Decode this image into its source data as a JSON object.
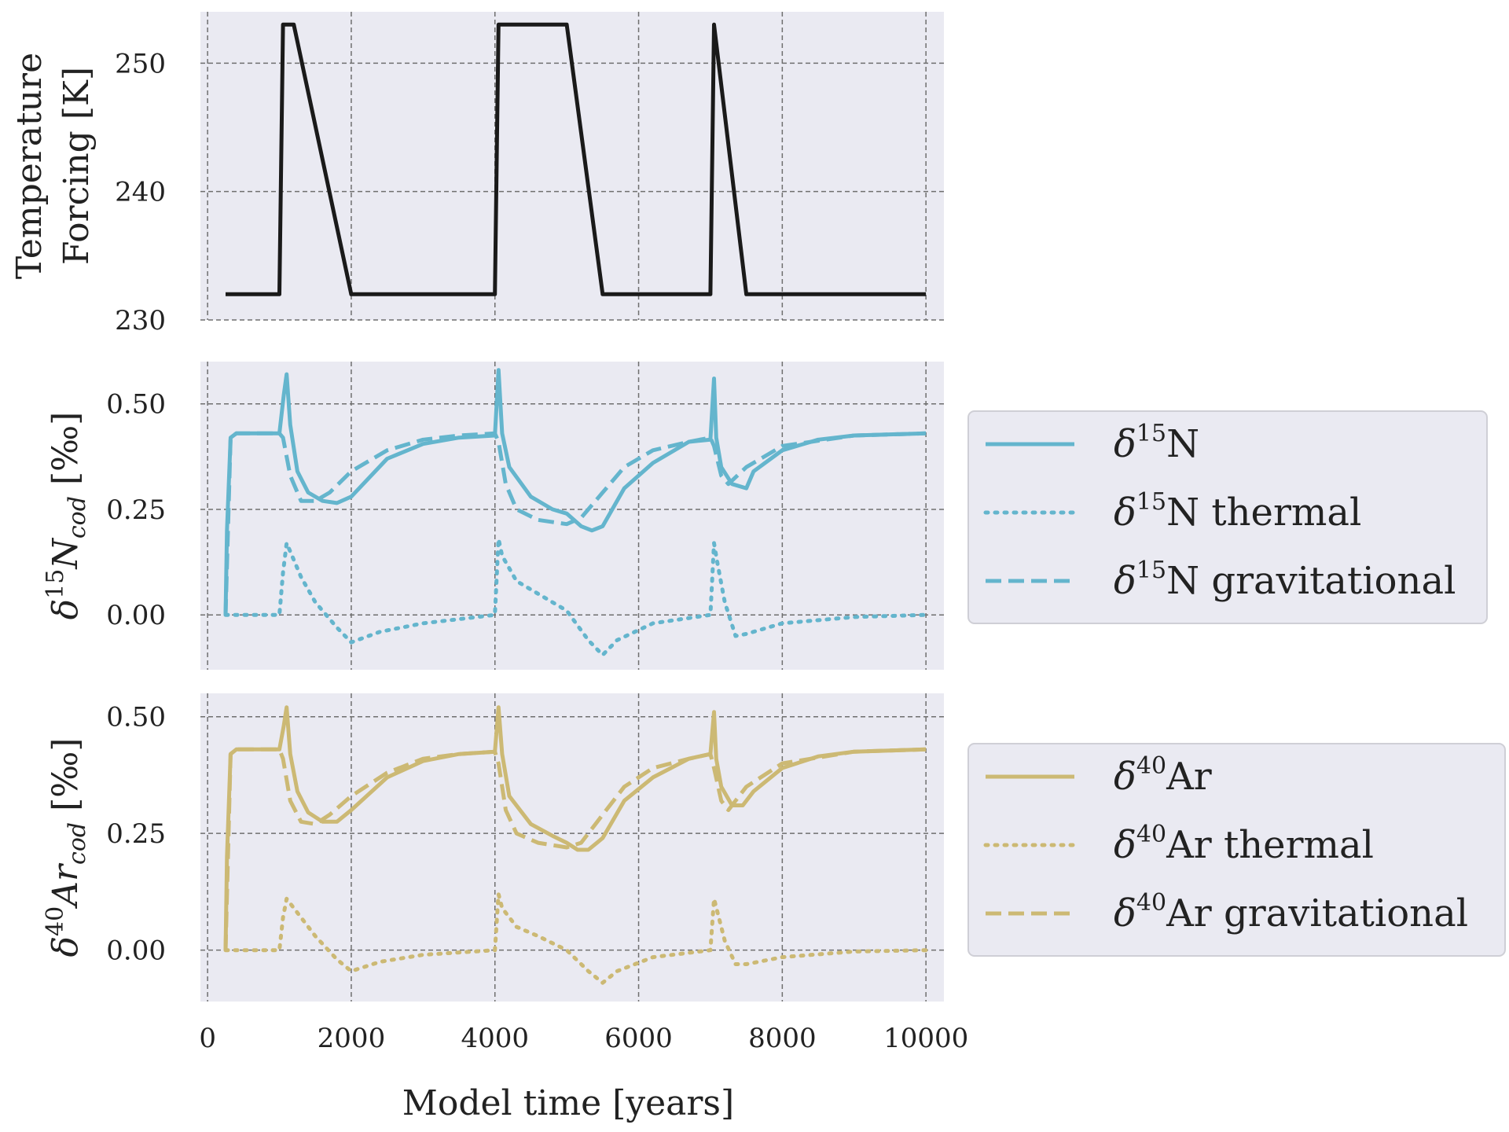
{
  "chart_data": [
    {
      "type": "line",
      "panel": "top",
      "ylabel_lines": [
        "Temperature",
        "Forcing [K]"
      ],
      "ylim": [
        230,
        254
      ],
      "xlim": [
        -100,
        10250
      ],
      "yticks": [
        230,
        240,
        250
      ],
      "ytick_labels": [
        "230",
        "240",
        "250"
      ],
      "xticks": [
        0,
        2000,
        4000,
        6000,
        8000,
        10000
      ],
      "grid": true,
      "series": [
        {
          "color": "#1a1a1a",
          "style": "solid",
          "x": [
            250,
            1000,
            1050,
            1200,
            2000,
            4000,
            4050,
            5000,
            5500,
            7000,
            7050,
            7500,
            10000
          ],
          "y": [
            232,
            232,
            253,
            253,
            232,
            232,
            253,
            253,
            232,
            232,
            253,
            232,
            232
          ]
        }
      ]
    },
    {
      "type": "line",
      "panel": "middle",
      "ylabel": {
        "delta": "δ",
        "sup": "15",
        "main": "N",
        "sub": "cod",
        "unit": " [‰]"
      },
      "ylim": [
        -0.13,
        0.6
      ],
      "yticks": [
        0.0,
        0.25,
        0.5
      ],
      "ytick_labels": [
        "0.00",
        "0.25",
        "0.50"
      ],
      "xlim": [
        -100,
        10250
      ],
      "xticks": [
        0,
        2000,
        4000,
        6000,
        8000,
        10000
      ],
      "grid": true,
      "legend": "right",
      "series": [
        {
          "legend": {
            "delta": "δ",
            "sup": "15",
            "text": "N"
          },
          "color": "#64b5cd",
          "style": "solid",
          "x": [
            250,
            270,
            320,
            400,
            1000,
            1060,
            1100,
            1150,
            1250,
            1400,
            1600,
            1800,
            2000,
            2500,
            3000,
            3500,
            4000,
            4050,
            4100,
            4200,
            4500,
            4800,
            5000,
            5200,
            5350,
            5500,
            5800,
            6200,
            6700,
            7000,
            7050,
            7080,
            7150,
            7300,
            7500,
            7600,
            8000,
            8500,
            9000,
            10000
          ],
          "y": [
            0.0,
            0.2,
            0.42,
            0.43,
            0.43,
            0.52,
            0.57,
            0.45,
            0.34,
            0.29,
            0.27,
            0.265,
            0.28,
            0.37,
            0.405,
            0.42,
            0.425,
            0.58,
            0.43,
            0.35,
            0.28,
            0.25,
            0.24,
            0.21,
            0.2,
            0.21,
            0.3,
            0.36,
            0.41,
            0.415,
            0.56,
            0.42,
            0.35,
            0.31,
            0.3,
            0.34,
            0.39,
            0.415,
            0.425,
            0.43
          ]
        },
        {
          "legend": {
            "delta": "δ",
            "sup": "15",
            "text": "N thermal"
          },
          "color": "#64b5cd",
          "style": "dotted",
          "x": [
            250,
            1000,
            1050,
            1100,
            1150,
            1300,
            1500,
            1800,
            2000,
            2400,
            3000,
            3500,
            4000,
            4050,
            4100,
            4300,
            4600,
            5000,
            5300,
            5500,
            5700,
            6200,
            7000,
            7050,
            7100,
            7200,
            7350,
            7500,
            8000,
            9000,
            10000
          ],
          "y": [
            0.0,
            0.0,
            0.1,
            0.17,
            0.15,
            0.09,
            0.03,
            -0.03,
            -0.065,
            -0.04,
            -0.02,
            -0.01,
            0.0,
            0.18,
            0.14,
            0.08,
            0.05,
            0.01,
            -0.06,
            -0.095,
            -0.06,
            -0.02,
            0.0,
            0.17,
            0.12,
            0.03,
            -0.05,
            -0.045,
            -0.02,
            -0.005,
            0.0
          ]
        },
        {
          "legend": {
            "delta": "δ",
            "sup": "15",
            "text": "N gravitational"
          },
          "color": "#64b5cd",
          "style": "dashed",
          "x": [
            250,
            320,
            400,
            1000,
            1050,
            1150,
            1300,
            1500,
            1700,
            2000,
            2500,
            3000,
            3500,
            4000,
            4050,
            4150,
            4300,
            4600,
            5000,
            5200,
            5500,
            5800,
            6200,
            6700,
            7000,
            7050,
            7150,
            7250,
            7500,
            8000,
            9000,
            10000
          ],
          "y": [
            0.0,
            0.42,
            0.43,
            0.43,
            0.42,
            0.33,
            0.27,
            0.27,
            0.29,
            0.34,
            0.39,
            0.415,
            0.425,
            0.43,
            0.41,
            0.31,
            0.25,
            0.225,
            0.215,
            0.23,
            0.29,
            0.35,
            0.39,
            0.41,
            0.42,
            0.4,
            0.33,
            0.31,
            0.35,
            0.4,
            0.425,
            0.43
          ]
        }
      ]
    },
    {
      "type": "line",
      "panel": "bottom",
      "ylabel": {
        "delta": "δ",
        "sup": "40",
        "main": "Ar",
        "sub": "cod",
        "unit": " [‰]"
      },
      "ylim": [
        -0.11,
        0.55
      ],
      "yticks": [
        0.0,
        0.25,
        0.5
      ],
      "ytick_labels": [
        "0.00",
        "0.25",
        "0.50"
      ],
      "xlim": [
        -100,
        10250
      ],
      "xticks": [
        0,
        2000,
        4000,
        6000,
        8000,
        10000
      ],
      "xtick_labels": [
        "0",
        "2000",
        "4000",
        "6000",
        "8000",
        "10000"
      ],
      "xlabel": "Model time [years]",
      "grid": true,
      "legend": "right",
      "series": [
        {
          "legend": {
            "delta": "δ",
            "sup": "40",
            "text": "Ar"
          },
          "color": "#ccb974",
          "style": "solid",
          "x": [
            250,
            270,
            320,
            400,
            1000,
            1060,
            1100,
            1150,
            1250,
            1400,
            1600,
            1800,
            2000,
            2500,
            3000,
            3500,
            4000,
            4050,
            4100,
            4200,
            4500,
            4800,
            5000,
            5150,
            5300,
            5500,
            5800,
            6200,
            6700,
            7000,
            7050,
            7080,
            7150,
            7300,
            7450,
            7600,
            8000,
            8500,
            9000,
            10000
          ],
          "y": [
            0.0,
            0.2,
            0.42,
            0.43,
            0.43,
            0.48,
            0.52,
            0.42,
            0.34,
            0.295,
            0.275,
            0.275,
            0.3,
            0.37,
            0.405,
            0.42,
            0.425,
            0.52,
            0.42,
            0.33,
            0.27,
            0.245,
            0.23,
            0.215,
            0.215,
            0.24,
            0.32,
            0.37,
            0.41,
            0.42,
            0.51,
            0.41,
            0.35,
            0.31,
            0.31,
            0.34,
            0.39,
            0.415,
            0.425,
            0.43
          ]
        },
        {
          "legend": {
            "delta": "δ",
            "sup": "40",
            "text": "Ar thermal"
          },
          "color": "#ccb974",
          "style": "dotted",
          "x": [
            250,
            1000,
            1050,
            1100,
            1150,
            1300,
            1500,
            1800,
            2000,
            2400,
            3000,
            3500,
            4000,
            4050,
            4100,
            4300,
            4600,
            5000,
            5300,
            5500,
            5700,
            6200,
            7000,
            7050,
            7100,
            7200,
            7350,
            7500,
            8000,
            9000,
            10000
          ],
          "y": [
            0.0,
            0.0,
            0.07,
            0.11,
            0.1,
            0.07,
            0.03,
            -0.02,
            -0.045,
            -0.025,
            -0.01,
            -0.005,
            0.0,
            0.12,
            0.09,
            0.05,
            0.03,
            0.0,
            -0.045,
            -0.07,
            -0.045,
            -0.015,
            0.0,
            0.11,
            0.08,
            0.02,
            -0.03,
            -0.03,
            -0.015,
            -0.003,
            0.0
          ]
        },
        {
          "legend": {
            "delta": "δ",
            "sup": "40",
            "text": "Ar gravitational"
          },
          "color": "#ccb974",
          "style": "dashed",
          "x": [
            250,
            320,
            400,
            1000,
            1050,
            1150,
            1300,
            1500,
            1700,
            2000,
            2500,
            3000,
            3500,
            4000,
            4050,
            4150,
            4300,
            4600,
            5000,
            5200,
            5500,
            5800,
            6200,
            6700,
            7000,
            7050,
            7150,
            7250,
            7500,
            8000,
            9000,
            10000
          ],
          "y": [
            0.0,
            0.42,
            0.43,
            0.43,
            0.41,
            0.32,
            0.275,
            0.27,
            0.29,
            0.33,
            0.38,
            0.41,
            0.42,
            0.425,
            0.4,
            0.3,
            0.25,
            0.23,
            0.22,
            0.23,
            0.29,
            0.35,
            0.39,
            0.41,
            0.42,
            0.39,
            0.32,
            0.3,
            0.35,
            0.4,
            0.425,
            0.43
          ]
        }
      ]
    }
  ]
}
